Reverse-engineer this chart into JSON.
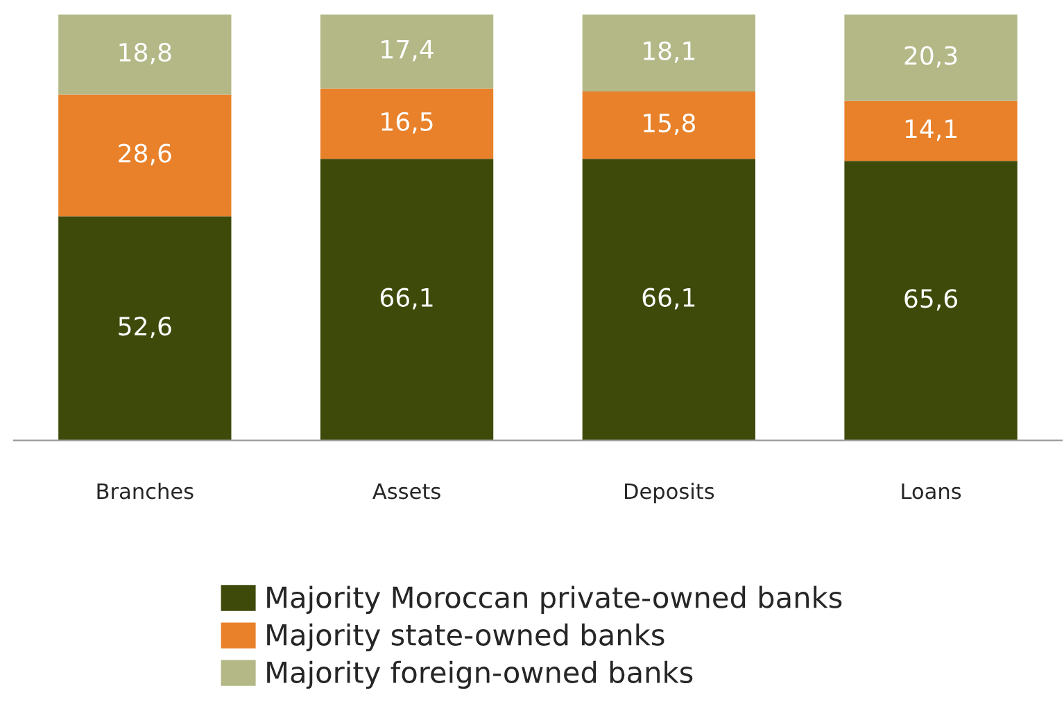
{
  "chart_data": {
    "type": "bar",
    "stacked": true,
    "legend": "bottom",
    "grid": false,
    "categories": [
      "Branches",
      "Assets",
      "Deposits",
      "Loans"
    ],
    "series": [
      {
        "name": "Majority Moroccan private-owned banks",
        "color": "#3d4a0a",
        "values": [
          52.6,
          66.1,
          66.1,
          65.6
        ],
        "value_labels": [
          "52,6",
          "66,1",
          "66,1",
          "65,6"
        ]
      },
      {
        "name": "Majority state-owned banks",
        "color": "#e8812a",
        "values": [
          28.6,
          16.5,
          15.8,
          14.1
        ],
        "value_labels": [
          "28,6",
          "16,5",
          "15,8",
          "14,1"
        ]
      },
      {
        "name": "Majority foreign-owned banks",
        "color": "#b3b886",
        "values": [
          18.8,
          17.4,
          18.1,
          20.3
        ],
        "value_labels": [
          "18,8",
          "17,4",
          "18,1",
          "20,3"
        ]
      }
    ]
  }
}
